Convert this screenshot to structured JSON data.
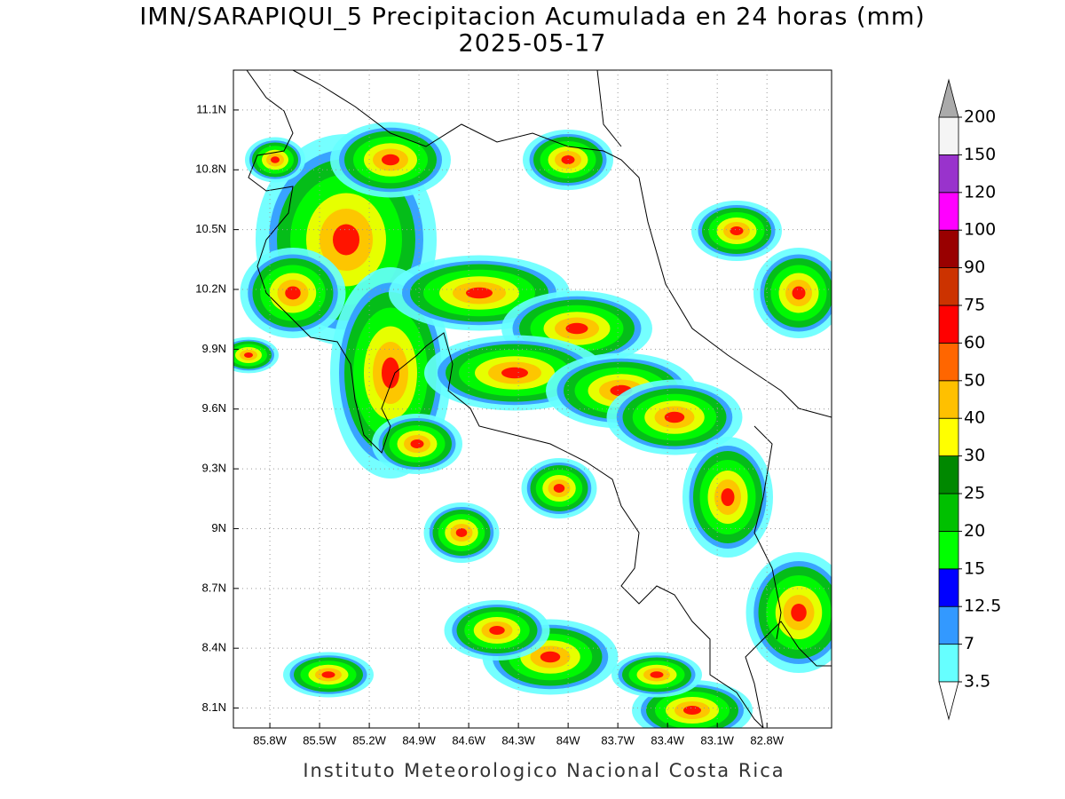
{
  "chart_data": {
    "type": "map",
    "title": "IMN/SARAPIQUI_5 Precipitacion Acumulada en 24 horas (mm)",
    "subtitle": "2025-05-17",
    "footer": "Instituto Meteorologico Nacional Costa Rica",
    "xlim": [
      -86.02,
      -82.41
    ],
    "ylim": [
      8.0,
      11.3
    ],
    "xticks": [
      {
        "value": -85.8,
        "label": "85.8W"
      },
      {
        "value": -85.5,
        "label": "85.5W"
      },
      {
        "value": -85.2,
        "label": "85.2W"
      },
      {
        "value": -84.9,
        "label": "84.9W"
      },
      {
        "value": -84.6,
        "label": "84.6W"
      },
      {
        "value": -84.3,
        "label": "84.3W"
      },
      {
        "value": -84.0,
        "label": "84W"
      },
      {
        "value": -83.7,
        "label": "83.7W"
      },
      {
        "value": -83.4,
        "label": "83.4W"
      },
      {
        "value": -83.1,
        "label": "83.1W"
      },
      {
        "value": -82.8,
        "label": "82.8W"
      }
    ],
    "yticks": [
      {
        "value": 8.1,
        "label": "8.1N"
      },
      {
        "value": 8.4,
        "label": "8.4N"
      },
      {
        "value": 8.7,
        "label": "8.7N"
      },
      {
        "value": 9.0,
        "label": "9N"
      },
      {
        "value": 9.3,
        "label": "9.3N"
      },
      {
        "value": 9.6,
        "label": "9.6N"
      },
      {
        "value": 9.9,
        "label": "9.9N"
      },
      {
        "value": 10.2,
        "label": "10.2N"
      },
      {
        "value": 10.5,
        "label": "10.5N"
      },
      {
        "value": 10.8,
        "label": "10.8N"
      },
      {
        "value": 11.1,
        "label": "11.1N"
      }
    ],
    "grid": true,
    "legend": {
      "levels": [
        3.5,
        7,
        12.5,
        15,
        20,
        25,
        30,
        40,
        50,
        60,
        75,
        90,
        100,
        120,
        150,
        200
      ],
      "colors": [
        "#66ffff",
        "#3399ff",
        "#0000ff",
        "#00ff00",
        "#00c000",
        "#008800",
        "#ffff00",
        "#ffc000",
        "#ff6600",
        "#ff0000",
        "#cc3300",
        "#990000",
        "#ff00ff",
        "#9933cc",
        "#f5f5f5"
      ],
      "under_color": "#ffffff",
      "over_color": "#aaaaaa"
    }
  }
}
